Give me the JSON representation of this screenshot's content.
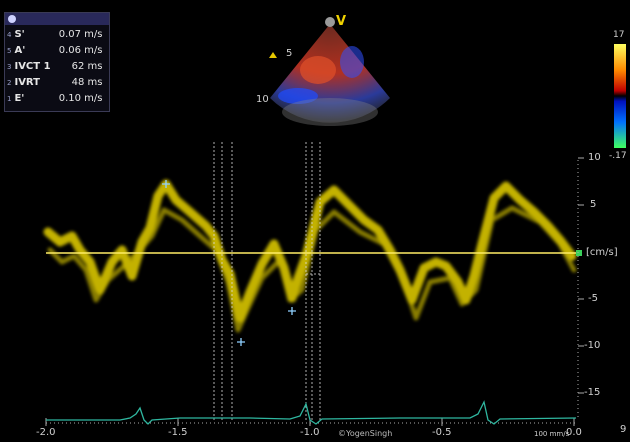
{
  "measurements": [
    {
      "index": "4",
      "label": "S'",
      "value": "0.07 m/s"
    },
    {
      "index": "5",
      "label": "A'",
      "value": "0.06 m/s"
    },
    {
      "index": "3",
      "label": "IVCT 1",
      "value": "62 ms"
    },
    {
      "index": "2",
      "label": "IVRT",
      "value": "48 ms"
    },
    {
      "index": "1",
      "label": "E'",
      "value": "0.10 m/s"
    }
  ],
  "sector": {
    "view_marker": "V",
    "depth_labels": [
      "5",
      "10"
    ]
  },
  "color_scale": {
    "top": "17",
    "bottom": "-.17"
  },
  "velocity_scale": {
    "unit": "[cm/s]",
    "ticks": [
      "10",
      "5",
      "-5",
      "-10",
      "-15"
    ]
  },
  "time_axis": {
    "ticks": [
      "-2.0",
      "-1.5",
      "-1.0",
      "-0.5",
      "0.0"
    ],
    "sweep": "100 mm/s",
    "extra": "9"
  },
  "watermark": "©YogenSingh",
  "colors": {
    "doppler": "#e6d200",
    "baseline": "#ffee66",
    "ecg": "#2fb7a0",
    "marker": "#8fd0ff"
  }
}
